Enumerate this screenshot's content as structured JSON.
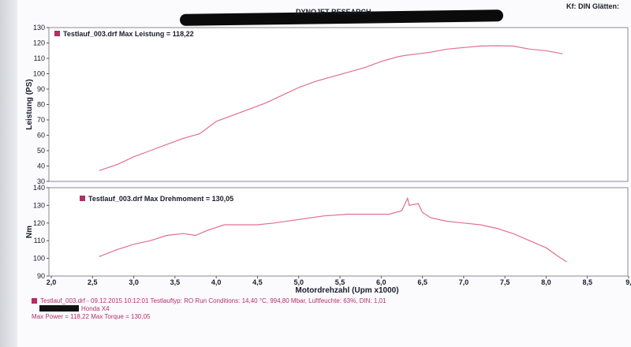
{
  "header": {
    "brand": "DYNOJET RESEARCH",
    "corner": "Kf: DIN  Glätten:"
  },
  "chart_data": [
    {
      "type": "line",
      "title": "Testlauf_003.drf Max Leistung = 118,22",
      "xlabel": "",
      "ylabel": "Leistung (PS)",
      "xlim": [
        2.0,
        9.0
      ],
      "ylim": [
        30,
        130
      ],
      "yticks": [
        "30",
        "40",
        "50",
        "60",
        "70",
        "80",
        "90",
        "100",
        "110",
        "120",
        "130"
      ],
      "grid": false,
      "series": [
        {
          "name": "Testlauf_003.drf",
          "color": "#e0708f",
          "points": [
            [
              2.58,
              37
            ],
            [
              2.8,
              41
            ],
            [
              3.0,
              46
            ],
            [
              3.2,
              50
            ],
            [
              3.4,
              54
            ],
            [
              3.6,
              58
            ],
            [
              3.8,
              61
            ],
            [
              4.0,
              69
            ],
            [
              4.2,
              73
            ],
            [
              4.4,
              77
            ],
            [
              4.6,
              81
            ],
            [
              4.8,
              86
            ],
            [
              5.0,
              91
            ],
            [
              5.2,
              95
            ],
            [
              5.4,
              98
            ],
            [
              5.6,
              101
            ],
            [
              5.8,
              104
            ],
            [
              6.0,
              108
            ],
            [
              6.2,
              111
            ],
            [
              6.3,
              112
            ],
            [
              6.45,
              113
            ],
            [
              6.6,
              114
            ],
            [
              6.8,
              116
            ],
            [
              7.0,
              117
            ],
            [
              7.2,
              118
            ],
            [
              7.4,
              118.2
            ],
            [
              7.6,
              118
            ],
            [
              7.8,
              116
            ],
            [
              8.0,
              115
            ],
            [
              8.2,
              113
            ]
          ]
        }
      ]
    },
    {
      "type": "line",
      "title": "Testlauf_003.drf Max Drehmoment = 130,05",
      "xlabel": "Motordrehzahl (Upm x1000)",
      "ylabel": "Nm",
      "xlim": [
        2.0,
        9.0
      ],
      "ylim": [
        90,
        140
      ],
      "xticks": [
        "2,0",
        "2,5",
        "3,0",
        "3,5",
        "4,0",
        "4,5",
        "5,0",
        "5,5",
        "6,0",
        "6,5",
        "7,0",
        "7,5",
        "8,0",
        "8,5",
        "9,"
      ],
      "yticks": [
        "90",
        "100",
        "110",
        "120",
        "130",
        "140"
      ],
      "grid": false,
      "series": [
        {
          "name": "Testlauf_003.drf",
          "color": "#e0708f",
          "points": [
            [
              2.58,
              101
            ],
            [
              2.8,
              105
            ],
            [
              3.0,
              108
            ],
            [
              3.2,
              110
            ],
            [
              3.4,
              113
            ],
            [
              3.6,
              114
            ],
            [
              3.75,
              113
            ],
            [
              3.9,
              116
            ],
            [
              4.1,
              119
            ],
            [
              4.3,
              119
            ],
            [
              4.5,
              119
            ],
            [
              4.7,
              120
            ],
            [
              5.0,
              122
            ],
            [
              5.3,
              124
            ],
            [
              5.6,
              125
            ],
            [
              5.9,
              125
            ],
            [
              6.1,
              125
            ],
            [
              6.25,
              127
            ],
            [
              6.32,
              134
            ],
            [
              6.34,
              130
            ],
            [
              6.45,
              131
            ],
            [
              6.5,
              126
            ],
            [
              6.6,
              123
            ],
            [
              6.8,
              121
            ],
            [
              7.0,
              120
            ],
            [
              7.2,
              119
            ],
            [
              7.4,
              117
            ],
            [
              7.6,
              114
            ],
            [
              7.8,
              110
            ],
            [
              8.0,
              106
            ],
            [
              8.15,
              101
            ],
            [
              8.25,
              98
            ]
          ]
        }
      ]
    }
  ],
  "footer": {
    "line1": "Testlauf_003.drf - 09.12.2015 10:12:01  Testlauftyp: RO  Run Conditions: 14,40 °C, 994,80 Mbar,  Luftfeuchte: 63%, DIN: 1,01",
    "line2": "Honda X4",
    "line3": "Max Power = 118,22  Max Torque = 130,05"
  }
}
